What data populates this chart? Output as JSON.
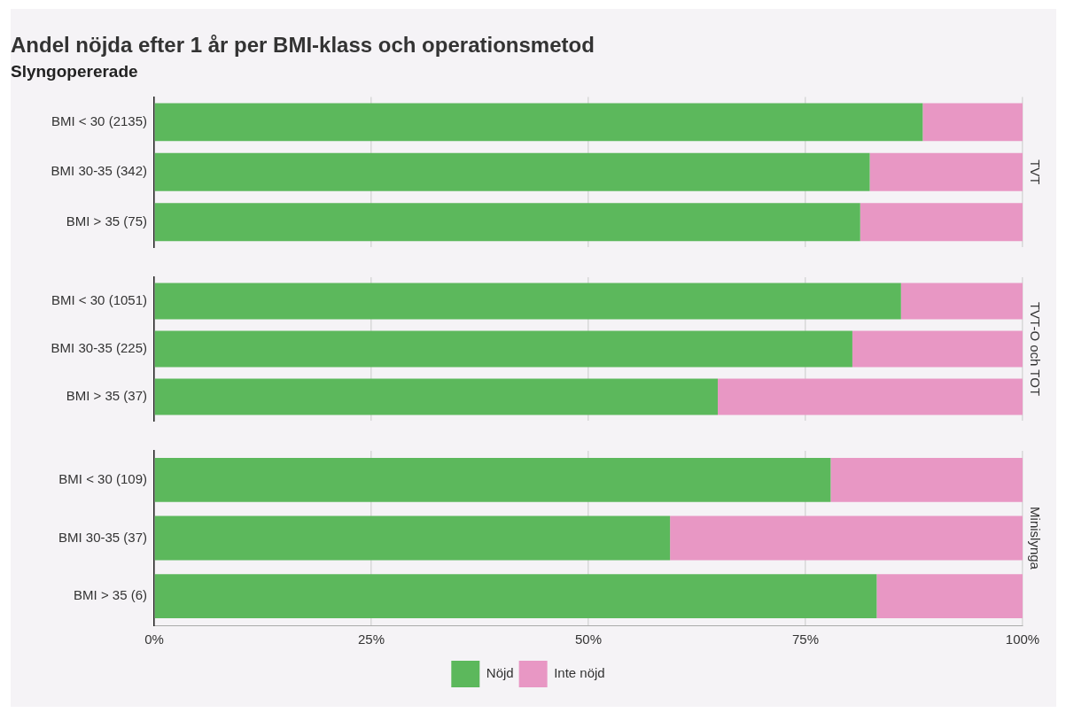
{
  "chart_data": [
    {
      "type": "bar",
      "orientation": "horizontal",
      "stacked": true,
      "title": "Andel nöjda efter 1 år per BMI-klass och operationsmetod",
      "subtitle": "Slyngopererade",
      "y2label": "TVT",
      "categories": [
        "BMI < 30 (2135)",
        "BMI 30-35 (342)",
        "BMI > 35 (75)"
      ],
      "series": [
        {
          "color": "#5cb85c",
          "values": [
            88.5,
            82.4,
            81.3
          ]
        },
        {
          "color": "#e897c4",
          "values": [
            11.5,
            17.6,
            18.7
          ]
        }
      ],
      "xlim": [
        0,
        100
      ],
      "xticks": [
        {
          "value": 0,
          "label": null
        },
        {
          "value": 25,
          "label": null
        },
        {
          "value": 50,
          "label": null
        },
        {
          "value": 75,
          "label": null
        },
        {
          "value": 100,
          "label": null
        }
      ],
      "grid": "x",
      "tick_labels": "y"
    },
    {
      "type": "bar",
      "orientation": "horizontal",
      "stacked": true,
      "y2label": "TVT-O och TOT",
      "categories": [
        "BMI < 30 (1051)",
        "BMI 30-35 (225)",
        "BMI > 35 (37)"
      ],
      "series": [
        {
          "color": "#5cb85c",
          "values": [
            86.0,
            80.4,
            64.9
          ]
        },
        {
          "color": "#e897c4",
          "values": [
            14.0,
            19.6,
            35.1
          ]
        }
      ],
      "xlim": [
        0,
        100
      ],
      "xticks": [
        {
          "value": 0,
          "label": null
        },
        {
          "value": 25,
          "label": null
        },
        {
          "value": 50,
          "label": null
        },
        {
          "value": 75,
          "label": null
        },
        {
          "value": 100,
          "label": null
        }
      ],
      "grid": "x",
      "tick_labels": "y"
    },
    {
      "type": "bar",
      "orientation": "horizontal",
      "stacked": true,
      "y2label": "Minislynga",
      "categories": [
        "BMI < 30 (109)",
        "BMI 30-35 (37)",
        "BMI > 35 (6)"
      ],
      "series": [
        {
          "name": "Nöjd",
          "color": "#5cb85c",
          "values": [
            77.9,
            59.4,
            83.2
          ]
        },
        {
          "name": "Inte nöjd",
          "color": "#e897c4",
          "values": [
            22.1,
            40.6,
            16.8
          ]
        }
      ],
      "xlim": [
        0,
        100
      ],
      "xticks": [
        {
          "value": 0,
          "label": "0%"
        },
        {
          "value": 25,
          "label": "25%"
        },
        {
          "value": 50,
          "label": "50%"
        },
        {
          "value": 75,
          "label": "75%"
        },
        {
          "value": 100,
          "label": "100%"
        }
      ],
      "grid": "x",
      "legend": "bottom"
    }
  ]
}
